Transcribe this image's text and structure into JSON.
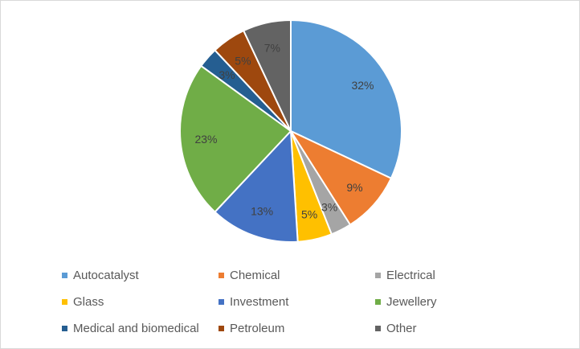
{
  "chart_data": {
    "type": "pie",
    "title": "",
    "categories": [
      "Autocatalyst",
      "Chemical",
      "Electrical",
      "Glass",
      "Investment",
      "Jewellery",
      "Medical and biomedical",
      "Petroleum",
      "Other"
    ],
    "values": [
      32,
      9,
      3,
      5,
      13,
      23,
      3,
      5,
      7
    ],
    "labels": [
      "32%",
      "9%",
      "3%",
      "5%",
      "13%",
      "23%",
      "3%",
      "5%",
      "7%"
    ],
    "colors": [
      "#5b9bd5",
      "#ed7d31",
      "#a5a5a5",
      "#ffc000",
      "#4472c4",
      "#70ad47",
      "#255e91",
      "#9e480e",
      "#636363"
    ],
    "legend_position": "bottom",
    "start_angle": "top",
    "direction": "clockwise"
  }
}
